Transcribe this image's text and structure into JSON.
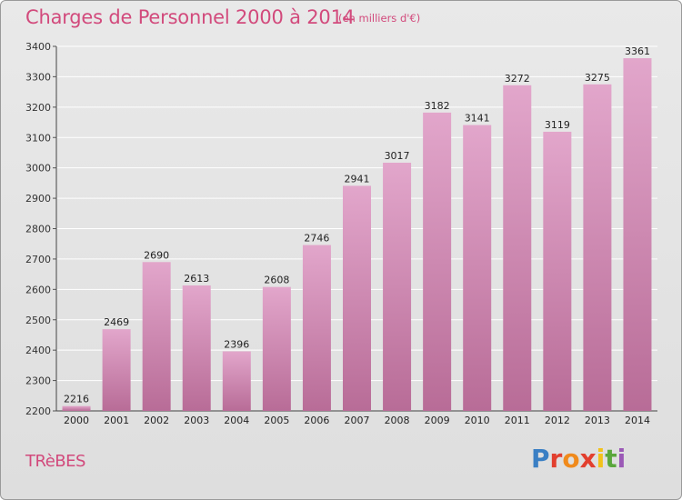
{
  "header": {
    "title": "Charges de Personnel 2000 à 2014",
    "subtitle": "(en milliers d'€)"
  },
  "footer": {
    "commune": "TRèBES",
    "logo_text": "Proxiti",
    "logo_colors": [
      "#3a7fc4",
      "#e23f2e",
      "#f08a1c",
      "#e23f2e",
      "#f2c21a",
      "#5aa73c",
      "#9b59b6"
    ]
  },
  "colors": {
    "bar_top": "#e2a6cb",
    "bar_bottom": "#b86c97",
    "accent": "#d24a7c",
    "grid": "#ffffff"
  },
  "chart_data": {
    "type": "bar",
    "categories": [
      "2000",
      "2001",
      "2002",
      "2003",
      "2004",
      "2005",
      "2006",
      "2007",
      "2008",
      "2009",
      "2010",
      "2011",
      "2012",
      "2013",
      "2014"
    ],
    "values": [
      2216,
      2469,
      2690,
      2613,
      2396,
      2608,
      2746,
      2941,
      3017,
      3182,
      3141,
      3272,
      3119,
      3275,
      3361
    ],
    "yticks": [
      2200,
      2300,
      2400,
      2500,
      2600,
      2700,
      2800,
      2900,
      3000,
      3100,
      3200,
      3300,
      3400
    ],
    "ylim": [
      2200,
      3400
    ],
    "grid": true
  }
}
